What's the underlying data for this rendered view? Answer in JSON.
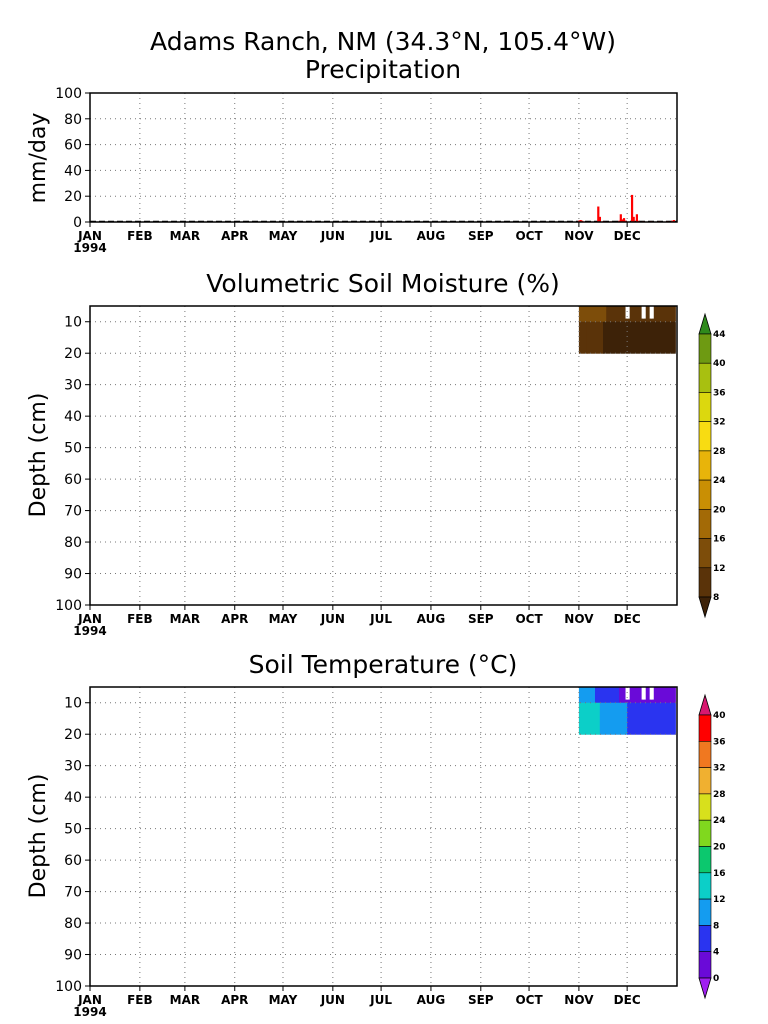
{
  "title": "Adams Ranch, NM (34.3°N, 105.4°W)",
  "x_axis": {
    "months": [
      "JAN",
      "FEB",
      "MAR",
      "APR",
      "MAY",
      "JUN",
      "JUL",
      "AUG",
      "SEP",
      "OCT",
      "NOV",
      "DEC"
    ],
    "year": "1994"
  },
  "chart_data": [
    {
      "type": "bar",
      "title": "Precipitation",
      "ylabel": "mm/day",
      "ylim": [
        0,
        100
      ],
      "yticks": [
        0,
        20,
        40,
        60,
        80,
        100
      ],
      "grid": true,
      "bar_color": "#ff0000",
      "x_unit": "day of year 1994",
      "x": [
        305,
        306,
        307,
        317,
        318,
        320,
        321,
        325,
        330,
        331,
        332,
        333,
        334,
        338,
        339,
        341,
        342,
        345,
        350,
        355,
        360,
        363,
        364
      ],
      "values": [
        1,
        1.5,
        1,
        12,
        4,
        0.5,
        0.5,
        0.5,
        1,
        6,
        2,
        3,
        1,
        21,
        4,
        6,
        1,
        0.5,
        0.5,
        0.5,
        0.5,
        1,
        1.5
      ]
    },
    {
      "type": "heatmap",
      "title": "Volumetric Soil Moisture (%)",
      "ylabel": "Depth (cm)",
      "ylim": [
        100,
        5
      ],
      "yticks": [
        10,
        20,
        30,
        40,
        50,
        60,
        70,
        80,
        90,
        100
      ],
      "grid": true,
      "x_unit": "day of year 1994",
      "data_x_range": [
        305,
        365
      ],
      "data_depth_range": [
        5,
        20
      ],
      "colorbar": {
        "levels": [
          8,
          12,
          16,
          20,
          24,
          28,
          32,
          36,
          40,
          44
        ],
        "colors": [
          "#3d2208",
          "#5a3309",
          "#7d4d0a",
          "#a36a06",
          "#c98f04",
          "#e8b40a",
          "#f8dc12",
          "#dcd80e",
          "#a8c010",
          "#6e9a12",
          "#2f8a1c"
        ]
      },
      "cells": [
        {
          "x0": 305,
          "x1": 312,
          "d0": 5,
          "d1": 10,
          "value": 12
        },
        {
          "x0": 312,
          "x1": 322,
          "d0": 5,
          "d1": 10,
          "value": 13
        },
        {
          "x0": 322,
          "x1": 334,
          "d0": 5,
          "d1": 10,
          "value": 10
        },
        {
          "x0": 334,
          "x1": 365,
          "d0": 5,
          "d1": 10,
          "value": 8
        },
        {
          "x0": 305,
          "x1": 310,
          "d0": 10,
          "d1": 20,
          "value": 11
        },
        {
          "x0": 310,
          "x1": 320,
          "d0": 10,
          "d1": 20,
          "value": 10
        },
        {
          "x0": 320,
          "x1": 365,
          "d0": 10,
          "d1": 20,
          "value": 7
        }
      ],
      "missing_days": [
        334,
        335,
        344,
        345,
        349,
        350
      ]
    },
    {
      "type": "heatmap",
      "title": "Soil Temperature (°C)",
      "ylabel": "Depth (cm)",
      "ylim": [
        100,
        5
      ],
      "yticks": [
        10,
        20,
        30,
        40,
        50,
        60,
        70,
        80,
        90,
        100
      ],
      "grid": true,
      "x_unit": "day of year 1994",
      "data_x_range": [
        305,
        365
      ],
      "data_depth_range": [
        5,
        20
      ],
      "colorbar": {
        "levels": [
          0,
          4,
          8,
          12,
          16,
          20,
          24,
          28,
          32,
          36,
          40
        ],
        "colors": [
          "#a020f0",
          "#6a0ad8",
          "#2a34f0",
          "#149cf0",
          "#0ccfc8",
          "#0cc86e",
          "#80d81e",
          "#d8e01c",
          "#f0b030",
          "#f07820",
          "#ff0000",
          "#d81870"
        ]
      },
      "cells": [
        {
          "x0": 305,
          "x1": 315,
          "d0": 5,
          "d1": 10,
          "value": 9
        },
        {
          "x0": 315,
          "x1": 330,
          "d0": 5,
          "d1": 10,
          "value": 6
        },
        {
          "x0": 330,
          "x1": 365,
          "d0": 5,
          "d1": 10,
          "value": 3
        },
        {
          "x0": 305,
          "x1": 318,
          "d0": 10,
          "d1": 20,
          "value": 13
        },
        {
          "x0": 318,
          "x1": 335,
          "d0": 10,
          "d1": 20,
          "value": 10
        },
        {
          "x0": 335,
          "x1": 365,
          "d0": 10,
          "d1": 20,
          "value": 7
        }
      ],
      "missing_days": [
        334,
        335,
        344,
        345,
        349,
        350
      ]
    }
  ]
}
